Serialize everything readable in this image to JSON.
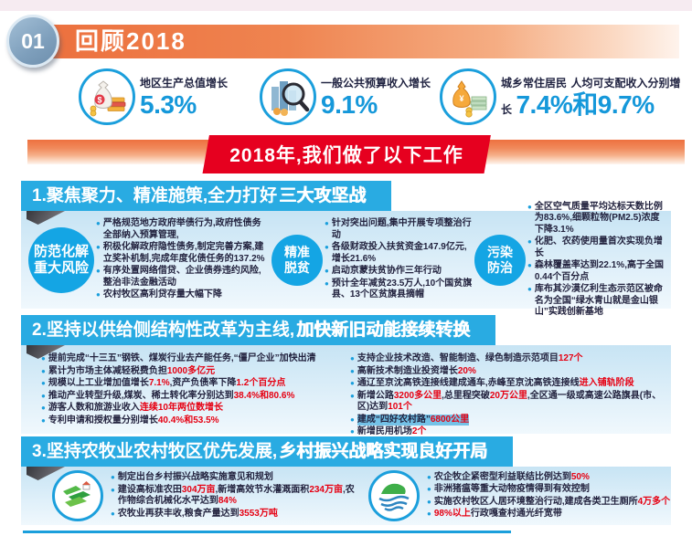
{
  "colors": {
    "accent_blue": "#1B9FDC",
    "header_blue": "#29ABE2",
    "circle_blue": "#14A5E4",
    "value_blue": "#1598DA",
    "red": "#E60012",
    "ribbon_red": "#E6001F",
    "banner_orange": "#EC6F3D",
    "badge_blue_gray": "#7E9FBC",
    "panel_light_blue": "#C7E4F4",
    "text_dark": "#23233F",
    "top_strip_pink": "#F6EBF1"
  },
  "header": {
    "badge": "01",
    "title": "回顾2018"
  },
  "stats": [
    {
      "icon": "money-bag-icon",
      "label1": "地区生产总值增长",
      "label2": "",
      "value": "5.3%"
    },
    {
      "icon": "magnifier-buildings-icon",
      "label1": "一般公共预算收入增长",
      "label2": "",
      "value": "9.1%"
    },
    {
      "icon": "coin-pouch-icon",
      "label1": "城乡常住居民",
      "label2": "人均可支配收入分别增长",
      "value": "7.4%和9.7%"
    }
  ],
  "ribbon": {
    "text": "2018年,我们做了以下工作"
  },
  "section1": {
    "title": "1.聚焦聚力、精准施策,全力打好",
    "title_em": "三大攻坚战",
    "groups": [
      {
        "circle": "防范化解\n重大风险",
        "bullets": [
          {
            "seg": [
              {
                "t": "严格规范地方政府举债行为,政府性债务全部纳入预算管理,"
              }
            ]
          },
          {
            "seg": [
              {
                "t": "积极化解政府隐性债务,制定完善方案,建立奖补机制,完成年度化债任务的137.2%"
              }
            ]
          },
          {
            "seg": [
              {
                "t": "有序处置网络借贷、企业债券违约风险,整治非法金融活动"
              }
            ]
          },
          {
            "seg": [
              {
                "t": "农村牧区高利贷存量大幅下降"
              }
            ]
          }
        ]
      },
      {
        "circle": "精准\n脱贫",
        "bullets": [
          {
            "seg": [
              {
                "t": "针对突出问题,集中开展专项整治行动"
              }
            ]
          },
          {
            "seg": [
              {
                "t": "各级财政投入扶贫资金147.9亿元,增长21.6%"
              }
            ]
          },
          {
            "seg": [
              {
                "t": "启动京蒙扶贫协作三年行动"
              }
            ]
          },
          {
            "seg": [
              {
                "t": "预计全年减贫23.5万人,10个国贫旗县、13个区贫旗县摘帽"
              }
            ]
          }
        ]
      },
      {
        "circle": "污染\n防治",
        "bullets": [
          {
            "seg": [
              {
                "t": "全区空气质量平均达标天数比例为83.6%,细颗粒物(PM2.5)浓度下降3.1%"
              }
            ]
          },
          {
            "seg": [
              {
                "t": "化肥、农药使用量首次实现负增长"
              }
            ]
          },
          {
            "seg": [
              {
                "t": "森林覆盖率达到22.1%,高于全国0.44个百分点"
              }
            ]
          },
          {
            "seg": [
              {
                "t": "库布其沙漠亿利生态示范区被命名为全国“绿水青山就是金山银山”实践创新基地"
              }
            ]
          }
        ]
      }
    ]
  },
  "section2": {
    "title": "2.坚持以供给侧结构性改革为主线,",
    "title_em": "加快新旧动能接续转换",
    "columns": [
      {
        "bullets": [
          {
            "seg": [
              {
                "t": "提前完成“十三五”钢铁、煤炭行业去产能任务,“僵尸企业”加快出清"
              }
            ]
          },
          {
            "seg": [
              {
                "t": "累计为市场主体减轻税费负担"
              },
              {
                "t": "1000多亿元",
                "em": true
              }
            ]
          },
          {
            "seg": [
              {
                "t": "规模以上工业增加值增长"
              },
              {
                "t": "7.1%",
                "em": true
              },
              {
                "t": ",资产负债率下降"
              },
              {
                "t": "1.2个百分点",
                "em": true
              }
            ]
          },
          {
            "seg": [
              {
                "t": "推动产业转型升级,煤炭、稀土转化率分别达到"
              },
              {
                "t": "38.4%和80.6%",
                "em": true
              }
            ]
          },
          {
            "seg": [
              {
                "t": "游客人数和旅游业收入"
              },
              {
                "t": "连续10年两位数增长",
                "em": true
              }
            ]
          },
          {
            "seg": [
              {
                "t": "专利申请和授权量分别增长"
              },
              {
                "t": "40.4%和53.5%",
                "em": true
              }
            ]
          }
        ]
      },
      {
        "bullets": [
          {
            "seg": [
              {
                "t": "支持企业技术改造、智能制造、绿色制造示范项目"
              },
              {
                "t": "127个",
                "em": true
              }
            ]
          },
          {
            "seg": [
              {
                "t": "高新技术制造业投资增长"
              },
              {
                "t": "20%",
                "em": true
              }
            ]
          },
          {
            "seg": [
              {
                "t": "通辽至京沈高铁连接线建成通车,赤峰至京沈高铁连接线"
              },
              {
                "t": "进入铺轨阶段",
                "em": true
              }
            ]
          },
          {
            "seg": [
              {
                "t": "新增公路"
              },
              {
                "t": "3200多公里",
                "em": true
              },
              {
                "t": ",总里程突破"
              },
              {
                "t": "20万公里",
                "em": true
              },
              {
                "t": ",全区通一级或高速公路旗县(市、区)达到"
              },
              {
                "t": "101个",
                "em": true
              }
            ]
          },
          {
            "hl": true,
            "seg": [
              {
                "t": "建成“四好农村路”"
              },
              {
                "t": "6800公里",
                "em": true
              }
            ]
          },
          {
            "seg": [
              {
                "t": "新增民用机场"
              },
              {
                "t": "2个",
                "em": true
              }
            ]
          }
        ]
      }
    ]
  },
  "section3": {
    "title": "3.坚持农牧业农村牧区优先发展,",
    "title_em": "乡村振兴战略实现良好开局",
    "groups": [
      {
        "icon": "farmland-icon",
        "bullets": [
          {
            "seg": [
              {
                "t": "制定出台乡村振兴战略实施意见和规划"
              }
            ]
          },
          {
            "seg": [
              {
                "t": "建设高标准农田"
              },
              {
                "t": "304万亩",
                "em": true
              },
              {
                "t": ",新增高效节水灌溉面积"
              },
              {
                "t": "234万亩",
                "em": true
              },
              {
                "t": ",农作物综合机械化水平达到"
              },
              {
                "t": "84%",
                "em": true
              }
            ]
          },
          {
            "seg": [
              {
                "t": "农牧业再获丰收,粮食产量达到"
              },
              {
                "t": "3553万吨",
                "em": true
              }
            ]
          }
        ]
      },
      {
        "icon": "eco-globe-icon",
        "bullets": [
          {
            "seg": [
              {
                "t": "农企牧企紧密型利益联结比例达到"
              },
              {
                "t": "50%",
                "em": true
              }
            ]
          },
          {
            "seg": [
              {
                "t": "非洲猪瘟等重大动物疫情得到有效控制"
              }
            ]
          },
          {
            "seg": [
              {
                "t": "实施农村牧区人居环境整治行动,建成各类卫生厕所"
              },
              {
                "t": "4万多个",
                "em": true
              }
            ]
          },
          {
            "seg": [
              {
                "t": "98%以上",
                "em": true
              },
              {
                "t": "行政嘎查村通光纤宽带"
              }
            ]
          }
        ]
      }
    ]
  }
}
